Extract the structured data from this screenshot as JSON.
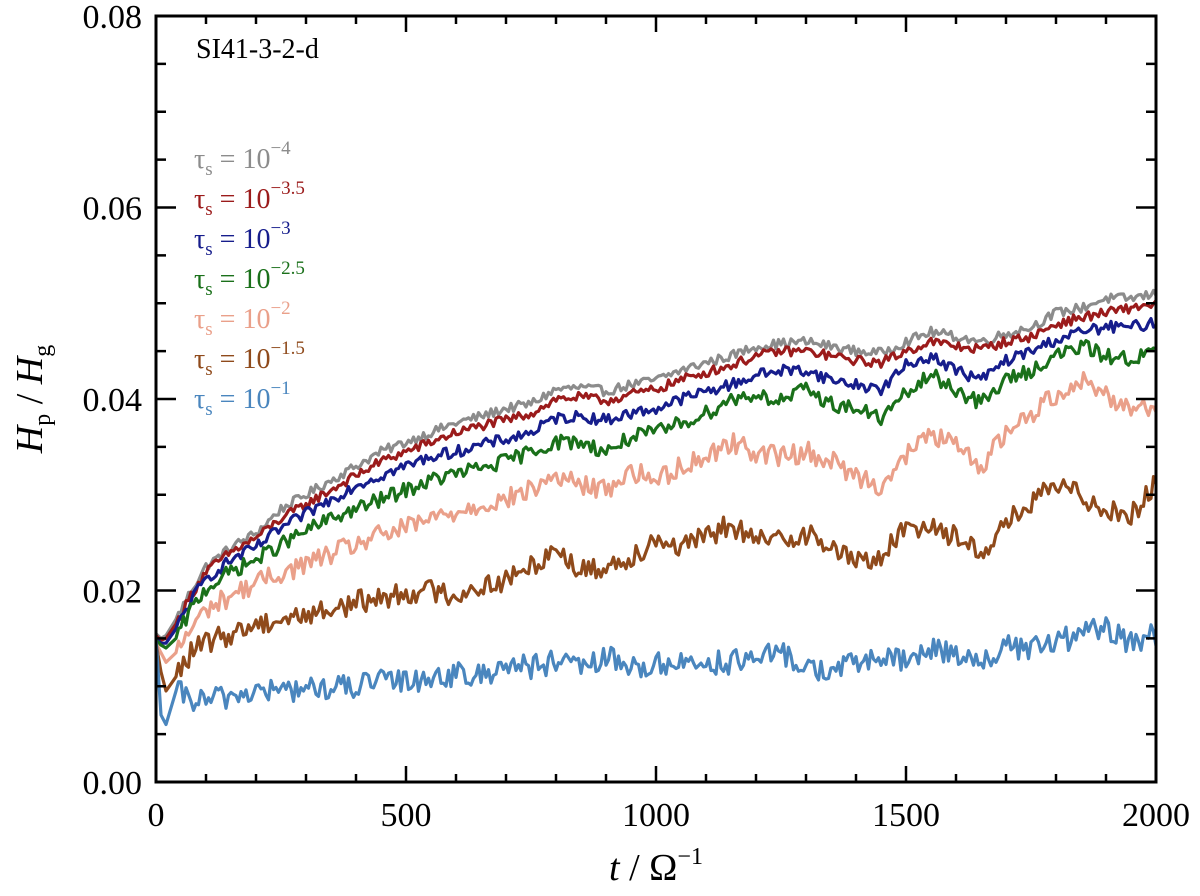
{
  "chart_data": {
    "type": "line",
    "title": "",
    "panel_label": "SI41-3-2-d",
    "xlabel": {
      "var": "t",
      "sep": " / ",
      "base": "Ω",
      "exp": "−1"
    },
    "ylabel": {
      "num": "H",
      "num_sub": "p",
      "sep": " / ",
      "den": "H",
      "den_sub": "g"
    },
    "xlim": [
      0,
      2000
    ],
    "ylim": [
      0,
      0.08
    ],
    "xticks": [
      0,
      500,
      1000,
      1500,
      2000
    ],
    "xtick_labels": [
      "0",
      "500",
      "1000",
      "1500",
      "2000"
    ],
    "yticks": [
      0,
      0.02,
      0.04,
      0.06,
      0.08
    ],
    "ytick_labels": [
      "0.00",
      "0.02",
      "0.04",
      "0.06",
      "0.08"
    ],
    "grid": false,
    "legend_position": "upper-left",
    "x": [
      0,
      10,
      20,
      40,
      70,
      100,
      150,
      200,
      250,
      300,
      350,
      400,
      450,
      500,
      550,
      600,
      650,
      700,
      750,
      800,
      850,
      900,
      950,
      1000,
      1050,
      1100,
      1150,
      1200,
      1250,
      1300,
      1350,
      1400,
      1450,
      1500,
      1550,
      1600,
      1650,
      1700,
      1750,
      1800,
      1850,
      1900,
      1950,
      2000
    ],
    "series": [
      {
        "name": "tau-1e-4",
        "label_sym": "τ",
        "label_sub": "s",
        "label_eq": " = 10",
        "label_exp": "−4",
        "color": "#8c8c8c",
        "values": [
          0.0155,
          0.015,
          0.0153,
          0.017,
          0.02,
          0.0225,
          0.0245,
          0.026,
          0.0285,
          0.03,
          0.0315,
          0.033,
          0.0345,
          0.0355,
          0.0365,
          0.0375,
          0.0382,
          0.039,
          0.0395,
          0.041,
          0.0412,
          0.0408,
          0.0415,
          0.042,
          0.043,
          0.0438,
          0.0445,
          0.0455,
          0.0458,
          0.046,
          0.0455,
          0.045,
          0.0448,
          0.046,
          0.047,
          0.0465,
          0.046,
          0.0468,
          0.0475,
          0.049,
          0.0495,
          0.0505,
          0.0505,
          0.051
        ]
      },
      {
        "name": "tau-1e-3.5",
        "label_sym": "τ",
        "label_sub": "s",
        "label_eq": " = 10",
        "label_exp": "−3.5",
        "color": "#9b1b1b",
        "values": [
          0.0153,
          0.0148,
          0.015,
          0.0165,
          0.0195,
          0.022,
          0.024,
          0.0255,
          0.0275,
          0.029,
          0.0305,
          0.032,
          0.0335,
          0.0345,
          0.0355,
          0.0365,
          0.0372,
          0.0378,
          0.0385,
          0.04,
          0.0402,
          0.0398,
          0.0405,
          0.041,
          0.042,
          0.0428,
          0.0435,
          0.0445,
          0.045,
          0.045,
          0.0445,
          0.044,
          0.0438,
          0.045,
          0.046,
          0.0455,
          0.0452,
          0.046,
          0.0465,
          0.0478,
          0.0485,
          0.049,
          0.0495,
          0.05
        ]
      },
      {
        "name": "tau-1e-3",
        "label_sym": "τ",
        "label_sub": "s",
        "label_eq": " = 10",
        "label_exp": "−3",
        "color": "#161d8c",
        "values": [
          0.015,
          0.0145,
          0.0145,
          0.016,
          0.019,
          0.0212,
          0.0232,
          0.0245,
          0.0265,
          0.028,
          0.0295,
          0.031,
          0.032,
          0.033,
          0.034,
          0.0345,
          0.0352,
          0.0358,
          0.0365,
          0.038,
          0.0382,
          0.0378,
          0.0385,
          0.039,
          0.04,
          0.0408,
          0.0415,
          0.0425,
          0.043,
          0.043,
          0.042,
          0.0415,
          0.041,
          0.0435,
          0.0445,
          0.043,
          0.042,
          0.044,
          0.045,
          0.0462,
          0.047,
          0.0475,
          0.0475,
          0.048
        ]
      },
      {
        "name": "tau-1e-2.5",
        "label_sym": "τ",
        "label_sub": "s",
        "label_eq": " = 10",
        "label_exp": "−2.5",
        "color": "#1a701a",
        "values": [
          0.0148,
          0.0143,
          0.014,
          0.015,
          0.018,
          0.0202,
          0.022,
          0.0232,
          0.0248,
          0.0262,
          0.0275,
          0.0285,
          0.0295,
          0.0305,
          0.0315,
          0.0322,
          0.0328,
          0.0335,
          0.0345,
          0.0355,
          0.0355,
          0.0345,
          0.036,
          0.0365,
          0.0375,
          0.0385,
          0.04,
          0.0405,
          0.0398,
          0.041,
          0.0395,
          0.039,
          0.038,
          0.0405,
          0.0425,
          0.041,
          0.0395,
          0.042,
          0.043,
          0.0445,
          0.0455,
          0.0445,
          0.0442,
          0.045
        ]
      },
      {
        "name": "tau-1e-2",
        "label_sym": "τ",
        "label_sub": "s",
        "label_eq": " = 10",
        "label_exp": "−2",
        "color": "#eaa08a",
        "values": [
          0.0145,
          0.0135,
          0.0125,
          0.0135,
          0.016,
          0.018,
          0.0195,
          0.0208,
          0.0218,
          0.0228,
          0.0238,
          0.0248,
          0.0258,
          0.0265,
          0.0275,
          0.0282,
          0.029,
          0.0295,
          0.0305,
          0.032,
          0.031,
          0.0305,
          0.0325,
          0.0315,
          0.033,
          0.034,
          0.0355,
          0.0345,
          0.034,
          0.0345,
          0.0335,
          0.032,
          0.031,
          0.034,
          0.0365,
          0.035,
          0.033,
          0.0365,
          0.0385,
          0.0405,
          0.042,
          0.0405,
          0.039,
          0.0395
        ]
      },
      {
        "name": "tau-1e-1.5",
        "label_sym": "τ",
        "label_sub": "s",
        "label_eq": " = 10",
        "label_exp": "−1.5",
        "color": "#8f4a1b",
        "values": [
          0.0145,
          0.0115,
          0.0095,
          0.011,
          0.0135,
          0.0145,
          0.0155,
          0.0165,
          0.017,
          0.0175,
          0.018,
          0.0188,
          0.0192,
          0.0198,
          0.02,
          0.0195,
          0.0205,
          0.021,
          0.0225,
          0.0245,
          0.022,
          0.0225,
          0.0235,
          0.0255,
          0.0245,
          0.0255,
          0.027,
          0.025,
          0.0255,
          0.026,
          0.0245,
          0.023,
          0.0235,
          0.0265,
          0.027,
          0.0255,
          0.024,
          0.027,
          0.029,
          0.031,
          0.03,
          0.0285,
          0.028,
          0.031
        ]
      },
      {
        "name": "tau-1e-1",
        "label_sym": "τ",
        "label_sub": "s",
        "label_eq": " = 10",
        "label_exp": "−1",
        "color": "#4a86be",
        "values": [
          0.015,
          0.007,
          0.006,
          0.0095,
          0.0085,
          0.0085,
          0.009,
          0.0095,
          0.0095,
          0.0098,
          0.0098,
          0.01,
          0.0105,
          0.0105,
          0.011,
          0.0112,
          0.011,
          0.0125,
          0.012,
          0.0125,
          0.0118,
          0.013,
          0.012,
          0.0122,
          0.0125,
          0.0125,
          0.0125,
          0.0128,
          0.0135,
          0.012,
          0.0115,
          0.0125,
          0.013,
          0.0125,
          0.014,
          0.0135,
          0.0125,
          0.014,
          0.014,
          0.0145,
          0.0155,
          0.016,
          0.0145,
          0.0155
        ]
      }
    ]
  }
}
